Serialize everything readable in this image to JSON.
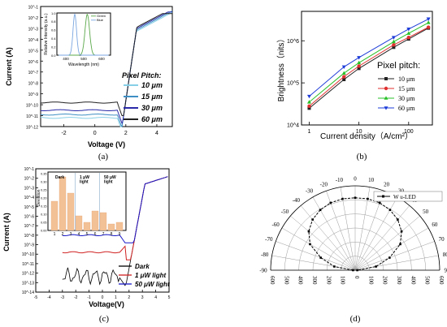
{
  "captions": [
    "(a)",
    "(b)",
    "(c)",
    "(d)"
  ],
  "chart_data": [
    {
      "type": "line",
      "xlabel": "Voltage (V)",
      "ylabel": "Current (A)",
      "xlim": [
        -3.5,
        5
      ],
      "ylim_exp": [
        -12,
        -1
      ],
      "x_ticks": [
        "-2",
        "0",
        "2",
        "4"
      ],
      "y_ticks": [
        "10^-12",
        "10^-11",
        "10^-10",
        "10^-9",
        "10^-8",
        "10^-7",
        "10^-6",
        "10^-5",
        "10^-4",
        "10^-3",
        "10^-2",
        "10^-1"
      ],
      "y_scale": "log",
      "legend_title": "Pixel Pitch:",
      "series": [
        {
          "name": "10 μm",
          "color": "#87cfe6",
          "leak_exp": -11.2
        },
        {
          "name": "15 μm",
          "color": "#3e8fc3",
          "leak_exp": -10.9
        },
        {
          "name": "30 μm",
          "color": "#2a2aa8",
          "leak_exp": -10.5
        },
        {
          "name": "60 μm",
          "color": "#222222",
          "leak_exp": -9.8
        }
      ],
      "inset": {
        "xlabel": "Wavelength (nm)",
        "ylabel": "Relative Intensity (a.u.)",
        "x_ticks": [
          "400",
          "500",
          "600"
        ],
        "y_ticks": [
          "0.0",
          "0.2",
          "0.4",
          "0.6",
          "0.8",
          "1.0"
        ],
        "series": [
          {
            "name": "Green",
            "color": "#5aa84a",
            "peak_nm": 520
          },
          {
            "name": "Blue",
            "color": "#7aa6e0",
            "peak_nm": 450
          }
        ]
      }
    },
    {
      "type": "line",
      "xlabel": "Current density（A/cm²）",
      "ylabel": "Brightness（nits）",
      "x_scale": "log",
      "y_scale": "log",
      "xlim": [
        0.7,
        300
      ],
      "ylim": [
        10000,
        5000000
      ],
      "x_ticks": [
        "1",
        "10",
        "100"
      ],
      "y_ticks": [
        "10^4",
        "10^5",
        "10^6"
      ],
      "x": [
        1,
        5,
        10,
        50,
        100,
        250
      ],
      "legend_title": "Pixel pitch:",
      "series": [
        {
          "name": "10 μm",
          "color": "#222222",
          "marker": "square",
          "values": [
            25000,
            120000,
            220000,
            700000,
            1100000,
            2000000
          ]
        },
        {
          "name": "15 μm",
          "color": "#e03030",
          "marker": "circle",
          "values": [
            28000,
            140000,
            250000,
            800000,
            1200000,
            2100000
          ]
        },
        {
          "name": "30 μm",
          "color": "#28c028",
          "marker": "triangle",
          "values": [
            35000,
            170000,
            300000,
            950000,
            1500000,
            2700000
          ]
        },
        {
          "name": "60 μm",
          "color": "#1e3cd8",
          "marker": "triangle-down",
          "values": [
            48000,
            240000,
            400000,
            1200000,
            1900000,
            3300000
          ]
        }
      ]
    },
    {
      "type": "line",
      "xlabel": "Voltage(V)",
      "ylabel": "Current (A)",
      "xlim": [
        -5,
        5
      ],
      "ylim_exp": [
        -14,
        -1
      ],
      "x_ticks": [
        "-5",
        "-4",
        "-3",
        "-2",
        "-1",
        "0",
        "1",
        "2",
        "3",
        "4",
        "5"
      ],
      "y_ticks": [
        "10^-14",
        "10^-13",
        "10^-12",
        "10^-11",
        "10^-10",
        "10^-9",
        "10^-8",
        "10^-7",
        "10^-6",
        "10^-5",
        "10^-4",
        "10^-3",
        "10^-2",
        "10^-1"
      ],
      "y_scale": "log",
      "series": [
        {
          "name": "Dark",
          "color": "#000000"
        },
        {
          "name": "1 μW light",
          "color": "#d02020"
        },
        {
          "name": "50 μW light",
          "color": "#1a1ac8"
        }
      ],
      "inset": {
        "type": "bar",
        "ylabel": "Deviation",
        "categories": [
          "1",
          "2",
          "3",
          "4",
          "5",
          "6",
          "7",
          "8",
          "9"
        ],
        "values": [
          0.18,
          0.33,
          0.23,
          0.09,
          0.05,
          0.12,
          0.11,
          0.04,
          0.05
        ],
        "y_ticks": [
          "0.00",
          "0.05",
          "0.10",
          "0.15",
          "0.20",
          "0.25",
          "0.30",
          "0.35"
        ],
        "ylim": [
          0,
          0.35
        ],
        "color": "#f3c196",
        "group_labels": [
          "Dark",
          "1 μW\nlight",
          "50 μW\nlight"
        ]
      }
    },
    {
      "type": "polar",
      "legend": "W u-LED",
      "angle_labels": [
        "-30",
        "-20",
        "-10",
        "0",
        "10",
        "20",
        "30",
        "40",
        "50",
        "60",
        "70",
        "80",
        "90",
        "-40",
        "-50",
        "-60",
        "-70",
        "-80",
        "-90"
      ],
      "radial_labels": [
        "600",
        "500",
        "400",
        "300",
        "200",
        "100",
        "0"
      ],
      "rmax": 600,
      "angles": [
        -90,
        -80,
        -70,
        -60,
        -50,
        -40,
        -30,
        -20,
        -10,
        0,
        10,
        20,
        30,
        40,
        50,
        60,
        70,
        80,
        90
      ],
      "values": [
        15,
        150,
        260,
        370,
        430,
        470,
        495,
        510,
        515,
        515,
        515,
        510,
        495,
        470,
        430,
        370,
        260,
        150,
        15
      ]
    }
  ]
}
